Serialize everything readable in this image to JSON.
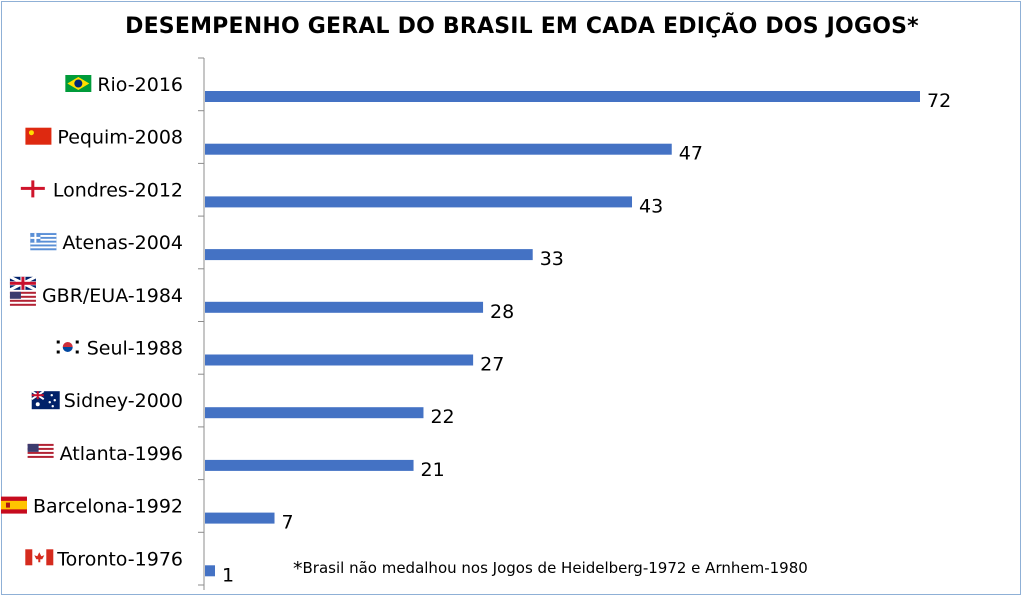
{
  "chart_data": {
    "type": "bar",
    "orientation": "horizontal",
    "title": "DESEMPENHO GERAL DO BRASIL EM CADA EDIÇÃO DOS JOGOS*",
    "categories": [
      "Rio-2016",
      "Pequim-2008",
      "Londres-2012",
      "Atenas-2004",
      "GBR/EUA-1984",
      "Seul-1988",
      "Sidney-2000",
      "Atlanta-1996",
      "Barcelona-1992",
      "Toronto-1976"
    ],
    "values": [
      72,
      47,
      43,
      33,
      28,
      27,
      22,
      21,
      7,
      1
    ],
    "flag_icons": [
      "brazil-flag-icon",
      "china-flag-icon",
      "england-flag-icon",
      "greece-flag-icon",
      "uk-usa-flags-icon",
      "south-korea-flag-icon",
      "australia-flag-icon",
      "usa-flag-icon",
      "spain-flag-icon",
      "canada-flag-icon"
    ],
    "bar_color": "#4472c4",
    "data_labels": true,
    "xlim": [
      0,
      72
    ],
    "grid": false,
    "legend": "none"
  },
  "footnote": {
    "star": "*",
    "text": "Brasil não medalhou nos Jogos de Heidelberg-1972 e Arnhem-1980"
  }
}
